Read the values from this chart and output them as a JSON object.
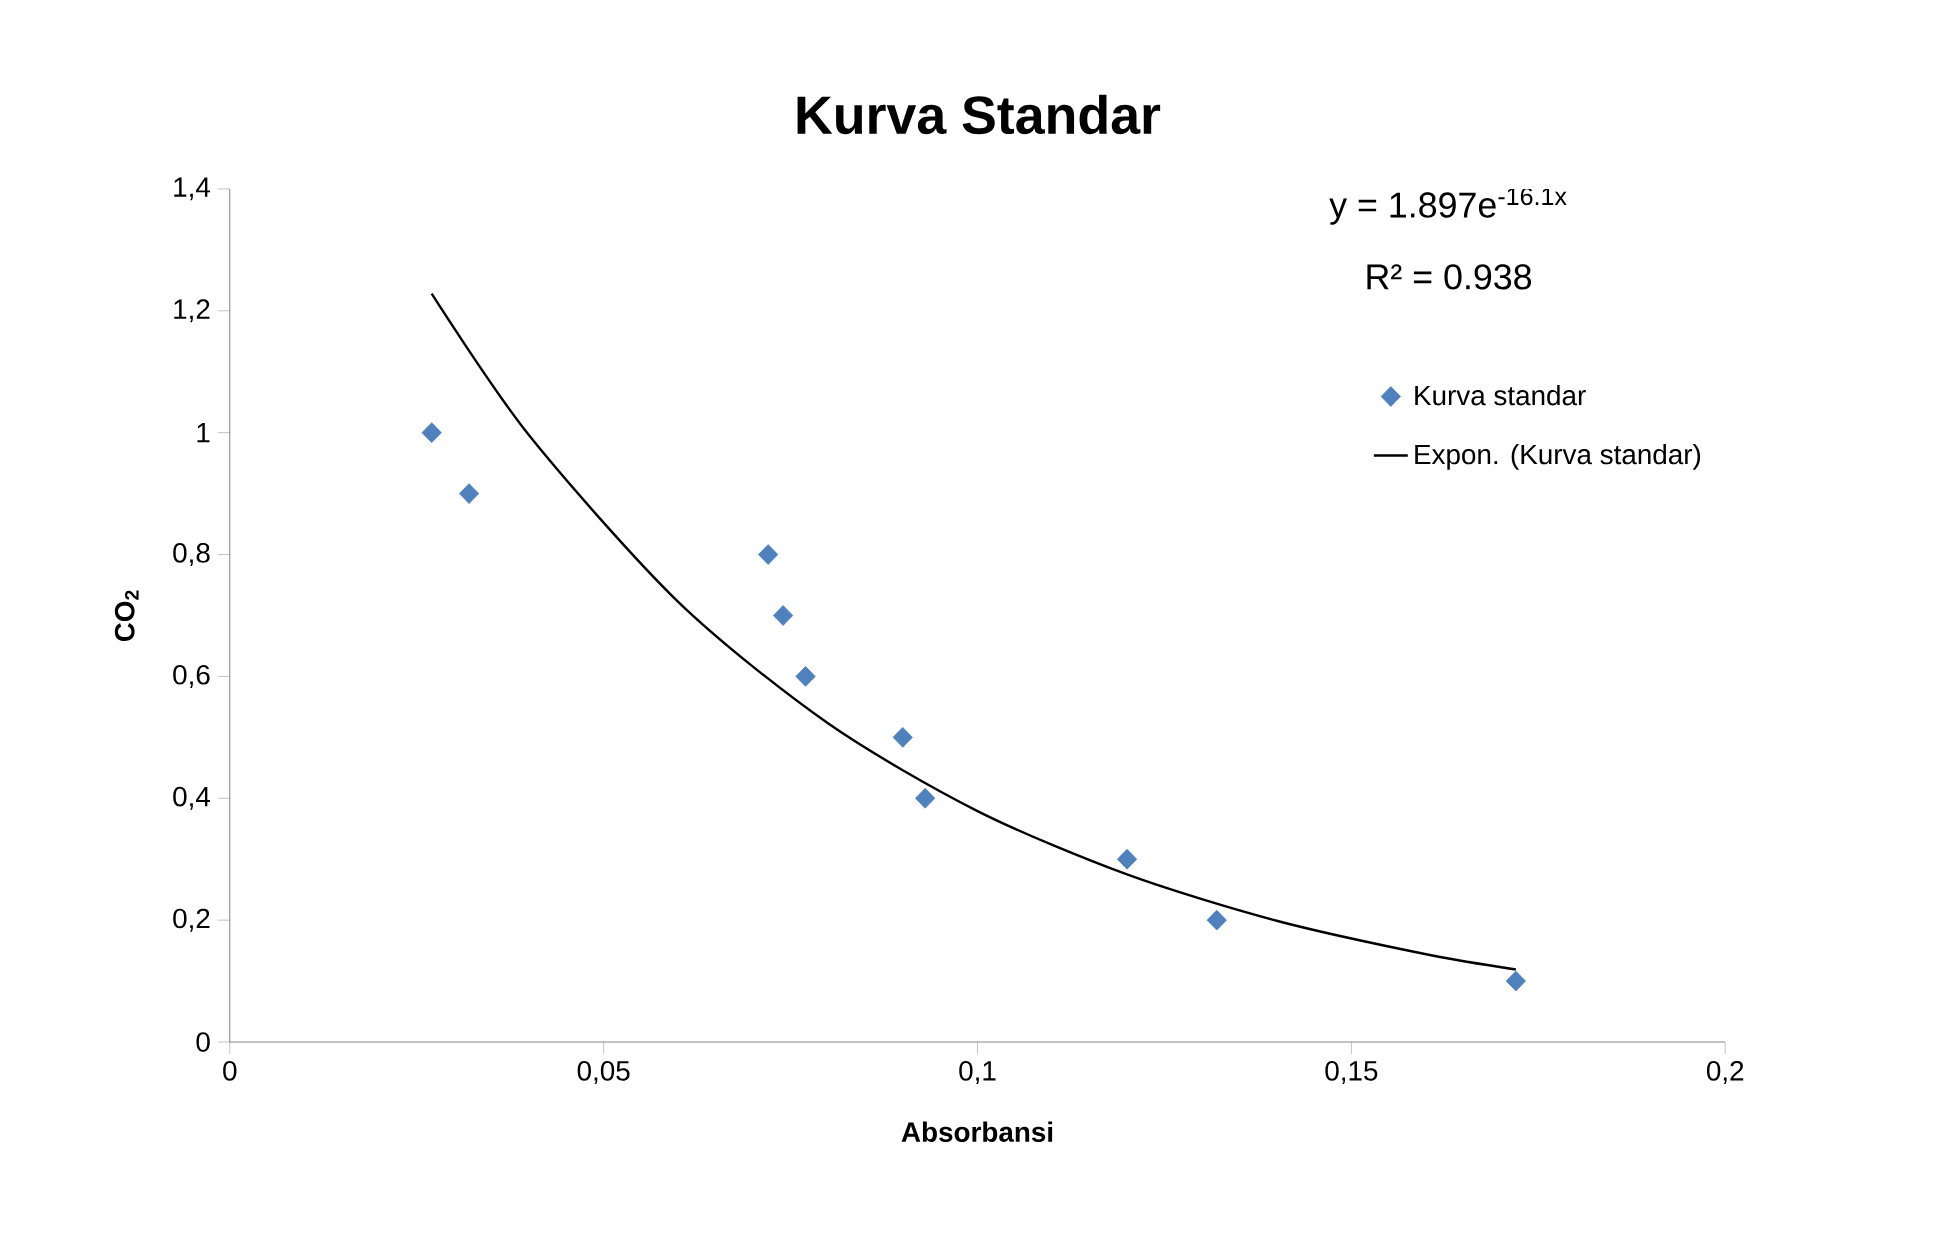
{
  "chart_data": {
    "type": "scatter",
    "title": "Kurva Standar",
    "xlabel": "Absorbansi",
    "ylabel": "CO$_{2}$",
    "xlim": [
      0,
      0.2
    ],
    "xticks": [
      0,
      {
        "value": 0.05,
        "label": "0,05"
      },
      {
        "value": 0.1,
        "label": "0,1"
      },
      {
        "value": 0.15,
        "label": "0,15"
      },
      {
        "value": 0.2,
        "label": "0,2"
      }
    ],
    "ylim": [
      0,
      1.4
    ],
    "yticks": [
      0,
      {
        "value": 0.2,
        "label": "0,2"
      },
      {
        "value": 0.4,
        "label": "0,4"
      },
      {
        "value": 0.6,
        "label": "0,6"
      },
      {
        "value": 0.8,
        "label": "0,8"
      },
      1,
      {
        "value": 1.2,
        "label": "1,2"
      },
      {
        "value": 1.4,
        "label": "1,4"
      }
    ],
    "series": [
      {
        "name": "Kurva standar",
        "marker": "diamond",
        "color": "#4f81bd",
        "x": [
          0.027,
          0.032,
          0.072,
          0.074,
          0.077,
          0.09,
          0.093,
          0.12,
          0.132,
          0.172
        ],
        "values": [
          1.0,
          0.9,
          0.8,
          0.7,
          0.6,
          0.5,
          0.4,
          0.3,
          0.2,
          0.1
        ]
      },
      {
        "name": "Expon. (Kurva standar)",
        "type": "line",
        "marker": "none",
        "color": "#000000",
        "line_style": "solid",
        "x": [
          0.027,
          0.04,
          0.06,
          0.08,
          0.1,
          0.12,
          0.14,
          0.16,
          0.172
        ],
        "values": [
          1.228,
          0.996,
          0.722,
          0.523,
          0.379,
          0.275,
          0.199,
          0.144,
          0.119
        ]
      }
    ],
    "legend": "right",
    "grid": false,
    "annotations": [
      "y = 1.897e$^{-16.1x}$",
      "R² = 0.938"
    ]
  }
}
